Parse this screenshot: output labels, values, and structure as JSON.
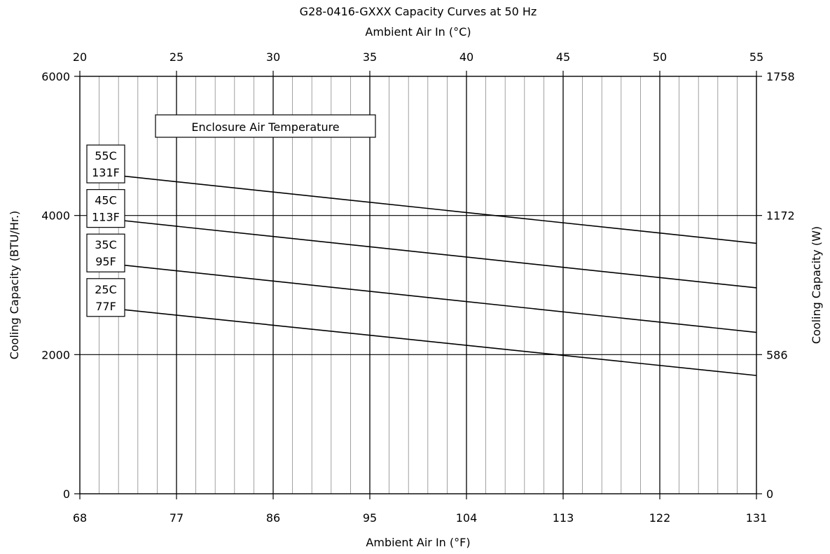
{
  "chart_data": {
    "type": "line",
    "title": "G28-0416-GXXX Capacity Curves at 50 Hz",
    "top_axis": {
      "label": "Ambient Air In (°C)",
      "ticks": [
        "20",
        "25",
        "30",
        "35",
        "40",
        "45",
        "50",
        "55"
      ],
      "range": [
        20,
        55
      ]
    },
    "xlabel": "Ambient Air In (°F)",
    "x_ticks": [
      "68",
      "77",
      "86",
      "95",
      "104",
      "113",
      "122",
      "131"
    ],
    "xlim": [
      68,
      131
    ],
    "ylabel": "Cooling Capacity (BTU/Hr.)",
    "y_ticks": [
      "0",
      "2000",
      "4000",
      "6000"
    ],
    "ylim": [
      0,
      6000
    ],
    "right_axis": {
      "label": "Cooling Capacity (W)",
      "ticks": [
        "0",
        "586",
        "1172",
        "1758"
      ]
    },
    "grid": true,
    "legend_title": "Enclosure Air Temperature",
    "series": [
      {
        "name": "55C 131F",
        "label_lines": [
          "55C",
          "131F"
        ],
        "x": [
          70,
          131
        ],
        "y": [
          4600,
          3600
        ]
      },
      {
        "name": "45C 113F",
        "label_lines": [
          "45C",
          "113F"
        ],
        "x": [
          70,
          131
        ],
        "y": [
          3960,
          2960
        ]
      },
      {
        "name": "35C 95F",
        "label_lines": [
          "35C",
          "95F"
        ],
        "x": [
          70,
          131
        ],
        "y": [
          3320,
          2320
        ]
      },
      {
        "name": "25C 77F",
        "label_lines": [
          "25C",
          "77F"
        ],
        "x": [
          70,
          131
        ],
        "y": [
          2680,
          1700
        ]
      }
    ],
    "colors": {
      "line": "#000000",
      "major_grid": "#000000",
      "minor_grid": "#888888"
    }
  }
}
